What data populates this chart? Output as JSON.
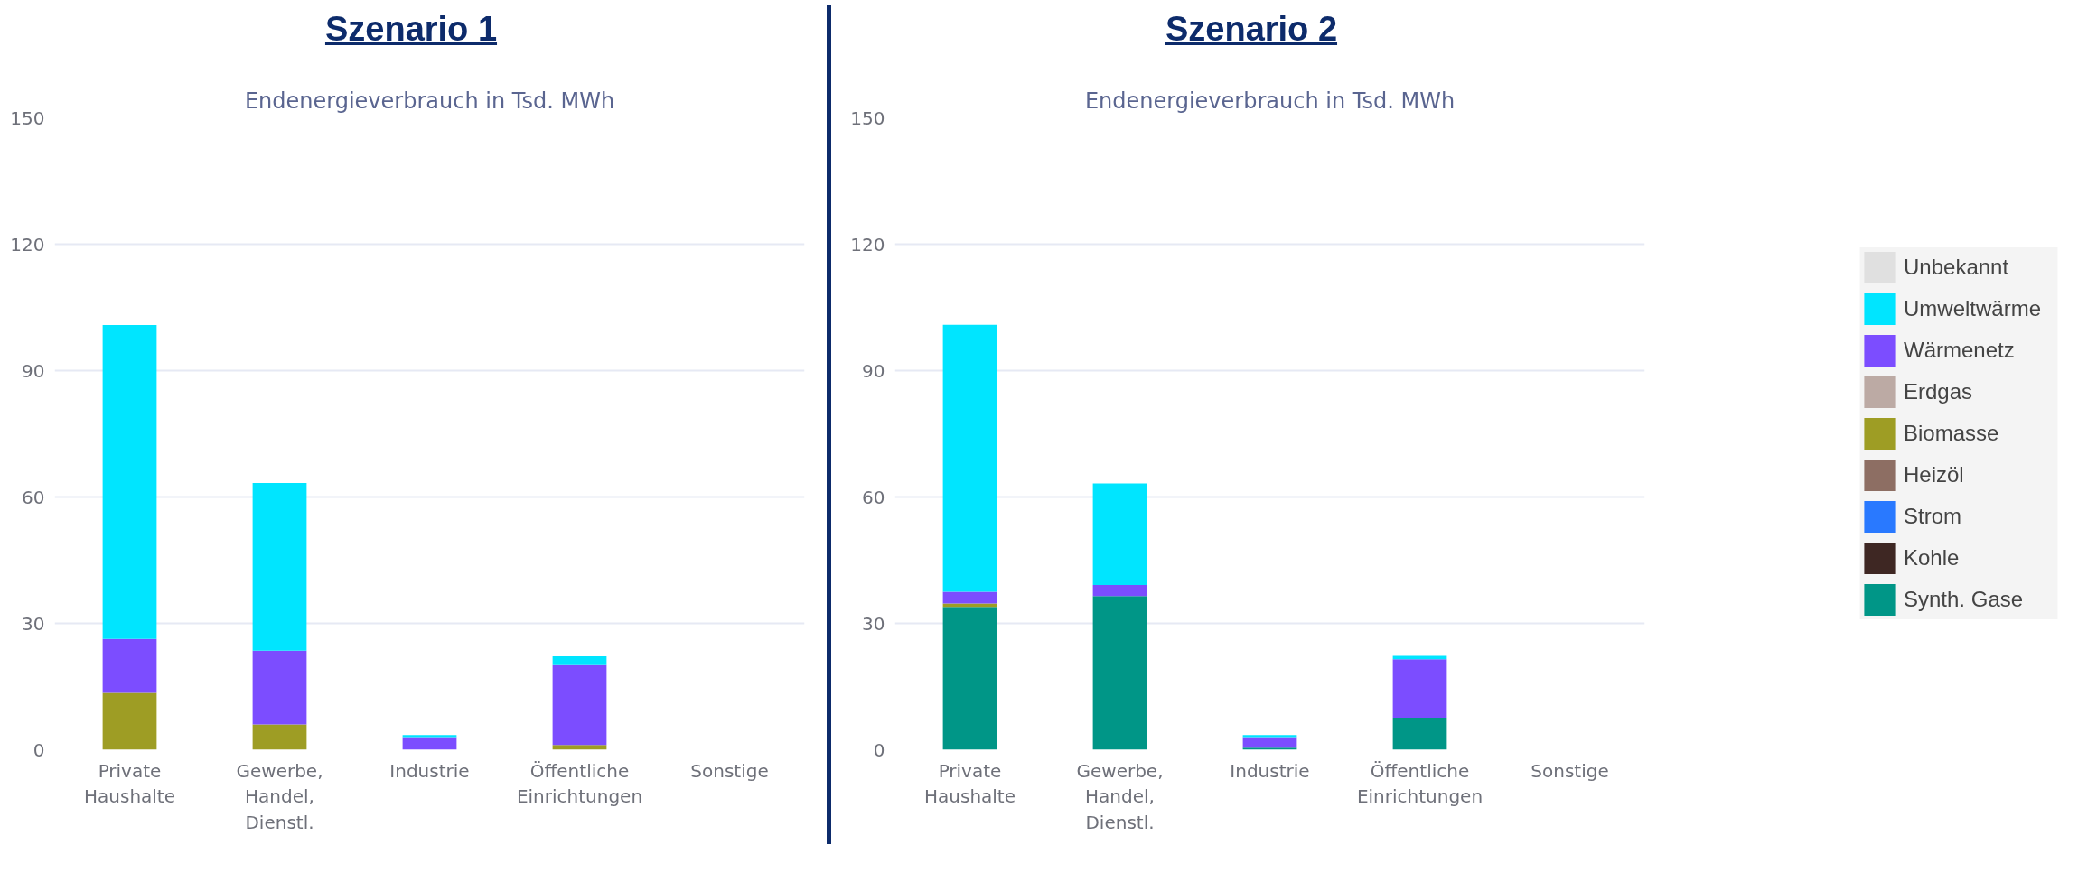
{
  "chart_data": [
    {
      "type": "bar",
      "title": "Szenario 1",
      "subtitle": "Endenergieverbrauch in Tsd. MWh",
      "stacked": true,
      "grid": "y",
      "categories": [
        "Private Haushalte",
        "Gewerbe, Handel, Dienstl.",
        "Industrie",
        "Öffentliche Einrichtungen",
        "Sonstige"
      ],
      "ylim": [
        0,
        150
      ],
      "yticks": [
        0,
        30,
        60,
        90,
        120,
        150
      ],
      "series": [
        {
          "color": "#009687",
          "values": [
            0,
            0,
            0,
            0,
            0
          ]
        },
        {
          "color": "#3e2723",
          "values": [
            0,
            0,
            0,
            0,
            0
          ]
        },
        {
          "color": "#2979ff",
          "values": [
            0,
            0,
            0,
            0,
            0
          ]
        },
        {
          "color": "#8d6e63",
          "values": [
            0,
            0,
            0,
            0,
            0
          ]
        },
        {
          "color": "#9e9d24",
          "values": [
            13.5,
            6,
            0,
            1.1,
            0
          ]
        },
        {
          "color": "#bcaaa4",
          "values": [
            0,
            0,
            0,
            0,
            0
          ]
        },
        {
          "color": "#7c4dff",
          "values": [
            12.8,
            17.5,
            3,
            19,
            0
          ]
        },
        {
          "color": "#00e5ff",
          "values": [
            74.5,
            39.8,
            0.5,
            2.1,
            0
          ]
        },
        {
          "color": "#e0e0e0",
          "values": [
            0,
            0,
            0,
            0,
            0
          ]
        }
      ]
    },
    {
      "type": "bar",
      "title": "Szenario 2",
      "subtitle": "Endenergieverbrauch in Tsd. MWh",
      "stacked": true,
      "grid": "y",
      "legend": "right",
      "categories": [
        "Private Haushalte",
        "Gewerbe, Handel, Dienstl.",
        "Industrie",
        "Öffentliche Einrichtungen",
        "Sonstige"
      ],
      "ylim": [
        0,
        150
      ],
      "yticks": [
        0,
        30,
        60,
        90,
        120,
        150
      ],
      "series": [
        {
          "name": "Synth. Gase",
          "color": "#009687",
          "values": [
            33.9,
            36.5,
            0.5,
            7.6,
            0
          ]
        },
        {
          "name": "Kohle",
          "color": "#3e2723",
          "values": [
            0,
            0,
            0,
            0,
            0
          ]
        },
        {
          "name": "Strom",
          "color": "#2979ff",
          "values": [
            0,
            0,
            0,
            0,
            0
          ]
        },
        {
          "name": "Heizöl",
          "color": "#8d6e63",
          "values": [
            0,
            0,
            0,
            0,
            0
          ]
        },
        {
          "name": "Biomasse",
          "color": "#9e9d24",
          "values": [
            0.8,
            0,
            0,
            0,
            0
          ]
        },
        {
          "name": "Erdgas",
          "color": "#bcaaa4",
          "values": [
            0,
            0,
            0,
            0,
            0
          ]
        },
        {
          "name": "Wärmenetz",
          "color": "#7c4dff",
          "values": [
            2.8,
            2.6,
            2.5,
            13.9,
            0
          ]
        },
        {
          "name": "Umweltwärme",
          "color": "#00e5ff",
          "values": [
            63.4,
            24.1,
            0.5,
            0.8,
            0
          ]
        },
        {
          "name": "Unbekannt",
          "color": "#e0e0e0",
          "values": [
            0,
            0,
            0,
            0,
            0
          ]
        }
      ]
    }
  ]
}
